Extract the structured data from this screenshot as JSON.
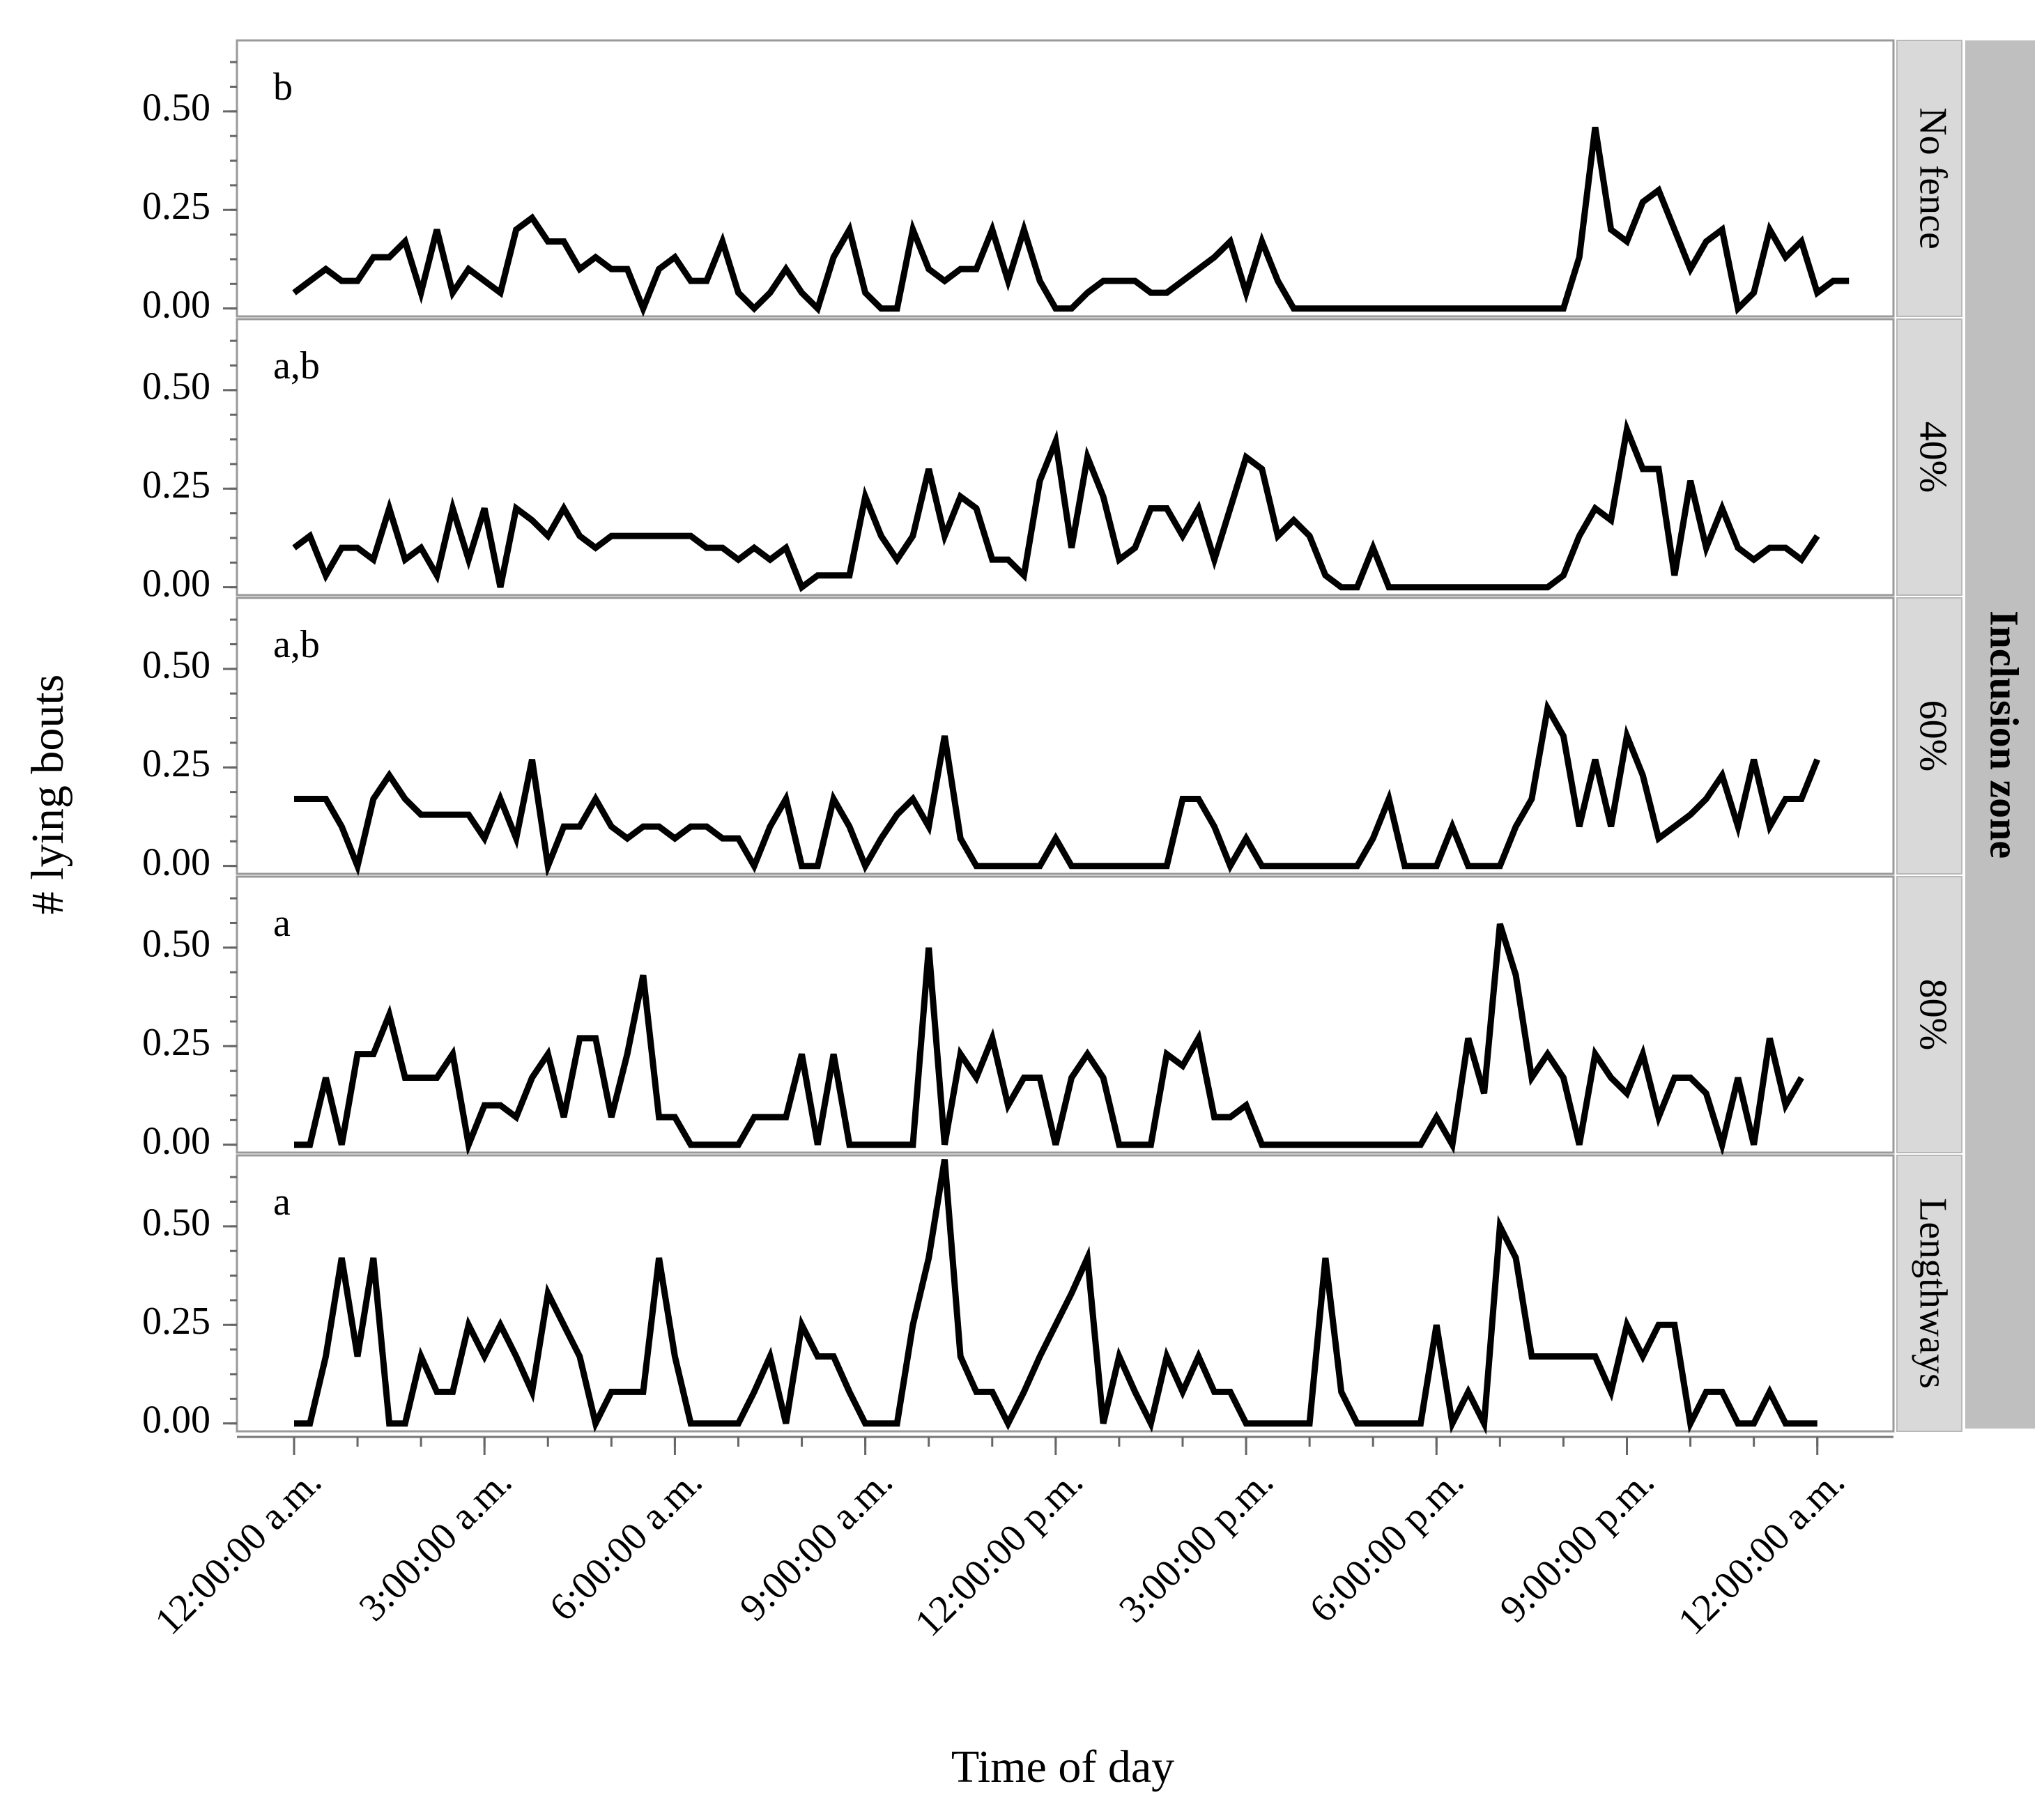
{
  "chart_data": {
    "type": "line",
    "xlabel": "Time of day",
    "ylabel": "# lying bouts",
    "facet_label": "Inclusion zone",
    "x_unit": "hours since midnight",
    "xlim": [
      -0.9,
      25.2
    ],
    "ylim": [
      -0.02,
      0.68
    ],
    "x_ticks": [
      {
        "value": 0,
        "label": "12:00:00 a.m."
      },
      {
        "value": 3,
        "label": "3:00:00 a.m."
      },
      {
        "value": 6,
        "label": "6:00:00 a.m."
      },
      {
        "value": 9,
        "label": "9:00:00 a.m."
      },
      {
        "value": 12,
        "label": "12:00:00 p.m."
      },
      {
        "value": 15,
        "label": "3:00:00 p.m."
      },
      {
        "value": 18,
        "label": "6:00:00 p.m."
      },
      {
        "value": 21,
        "label": "9:00:00 p.m."
      },
      {
        "value": 24,
        "label": "12:00:00 a.m."
      }
    ],
    "y_ticks": [
      {
        "value": 0,
        "label": "0.00"
      },
      {
        "value": 0.25,
        "label": "0.25"
      },
      {
        "value": 0.5,
        "label": "0.50"
      }
    ],
    "y_minor_step": 0.0625,
    "x_interval_hours": 0.25,
    "panels": [
      {
        "name": "No fence",
        "significance": "b",
        "values": [
          0.04,
          0.07,
          0.1,
          0.07,
          0.07,
          0.13,
          0.13,
          0.17,
          0.04,
          0.2,
          0.04,
          0.1,
          0.07,
          0.04,
          0.2,
          0.23,
          0.17,
          0.17,
          0.1,
          0.13,
          0.1,
          0.1,
          0,
          0.1,
          0.13,
          0.07,
          0.07,
          0.17,
          0.04,
          0,
          0.04,
          0.1,
          0.04,
          0,
          0.13,
          0.2,
          0.04,
          0,
          0,
          0.2,
          0.1,
          0.07,
          0.1,
          0.1,
          0.2,
          0.07,
          0.2,
          0.07,
          0,
          0,
          0.04,
          0.07,
          0.07,
          0.07,
          0.04,
          0.04,
          0.07,
          0.1,
          0.13,
          0.17,
          0.04,
          0.17,
          0.07,
          0,
          0,
          0,
          0,
          0,
          0,
          0,
          0,
          0,
          0,
          0,
          0,
          0,
          0,
          0,
          0,
          0,
          0,
          0.13,
          0.46,
          0.2,
          0.17,
          0.27,
          0.3,
          0.2,
          0.1,
          0.17,
          0.2,
          0,
          0.04,
          0.2,
          0.13,
          0.17,
          0.04,
          0.07,
          0.07
        ]
      },
      {
        "name": "40%",
        "significance": "a,b",
        "values": [
          0.1,
          0.13,
          0.03,
          0.1,
          0.1,
          0.07,
          0.2,
          0.07,
          0.1,
          0.03,
          0.2,
          0.07,
          0.2,
          0,
          0.2,
          0.17,
          0.13,
          0.2,
          0.13,
          0.1,
          0.13,
          0.13,
          0.13,
          0.13,
          0.13,
          0.13,
          0.1,
          0.1,
          0.07,
          0.1,
          0.07,
          0.1,
          0,
          0.03,
          0.03,
          0.03,
          0.23,
          0.13,
          0.07,
          0.13,
          0.3,
          0.13,
          0.23,
          0.2,
          0.07,
          0.07,
          0.03,
          0.27,
          0.37,
          0.1,
          0.33,
          0.23,
          0.07,
          0.1,
          0.2,
          0.2,
          0.13,
          0.2,
          0.07,
          0.2,
          0.33,
          0.3,
          0.13,
          0.17,
          0.13,
          0.03,
          0,
          0,
          0.1,
          0,
          0,
          0,
          0,
          0,
          0,
          0,
          0,
          0,
          0,
          0,
          0.03,
          0.13,
          0.2,
          0.17,
          0.4,
          0.3,
          0.3,
          0.03,
          0.27,
          0.1,
          0.2,
          0.1,
          0.07,
          0.1,
          0.1,
          0.07,
          0.13
        ]
      },
      {
        "name": "60%",
        "significance": "a,b",
        "values": [
          0.17,
          0.17,
          0.17,
          0.1,
          0,
          0.17,
          0.23,
          0.17,
          0.13,
          0.13,
          0.13,
          0.13,
          0.07,
          0.17,
          0.07,
          0.27,
          0,
          0.1,
          0.1,
          0.17,
          0.1,
          0.07,
          0.1,
          0.1,
          0.07,
          0.1,
          0.1,
          0.07,
          0.07,
          0,
          0.1,
          0.17,
          0,
          0,
          0.17,
          0.1,
          0,
          0.07,
          0.13,
          0.17,
          0.1,
          0.33,
          0.07,
          0,
          0,
          0,
          0,
          0,
          0.07,
          0,
          0,
          0,
          0,
          0,
          0,
          0,
          0.17,
          0.17,
          0.1,
          0,
          0.07,
          0,
          0,
          0,
          0,
          0,
          0,
          0,
          0.07,
          0.17,
          0,
          0,
          0,
          0.1,
          0,
          0,
          0,
          0.1,
          0.17,
          0.4,
          0.33,
          0.1,
          0.27,
          0.1,
          0.33,
          0.23,
          0.07,
          0.1,
          0.13,
          0.17,
          0.23,
          0.1,
          0.27,
          0.1,
          0.17,
          0.17,
          0.27
        ]
      },
      {
        "name": "80%",
        "significance": "a",
        "values": [
          0,
          0,
          0.17,
          0,
          0.23,
          0.23,
          0.33,
          0.17,
          0.17,
          0.17,
          0.23,
          0,
          0.1,
          0.1,
          0.07,
          0.17,
          0.23,
          0.07,
          0.27,
          0.27,
          0.07,
          0.23,
          0.43,
          0.07,
          0.07,
          0,
          0,
          0,
          0,
          0.07,
          0.07,
          0.07,
          0.23,
          0,
          0.23,
          0,
          0,
          0,
          0,
          0,
          0.5,
          0,
          0.23,
          0.17,
          0.27,
          0.1,
          0.17,
          0.17,
          0,
          0.17,
          0.23,
          0.17,
          0,
          0,
          0,
          0.23,
          0.2,
          0.27,
          0.07,
          0.07,
          0.1,
          0,
          0,
          0,
          0,
          0,
          0,
          0,
          0,
          0,
          0,
          0,
          0.07,
          0,
          0.27,
          0.13,
          0.56,
          0.43,
          0.17,
          0.23,
          0.17,
          0,
          0.23,
          0.17,
          0.13,
          0.23,
          0.07,
          0.17,
          0.17,
          0.13,
          0,
          0.17,
          0,
          0.27,
          0.1,
          0.17
        ]
      },
      {
        "name": "Lengthways",
        "significance": "a",
        "values": [
          0,
          0,
          0.17,
          0.42,
          0.17,
          0.42,
          0,
          0,
          0.17,
          0.08,
          0.08,
          0.25,
          0.17,
          0.25,
          0.17,
          0.08,
          0.33,
          0.25,
          0.17,
          0,
          0.08,
          0.08,
          0.08,
          0.42,
          0.17,
          0,
          0,
          0,
          0,
          0.08,
          0.17,
          0,
          0.25,
          0.17,
          0.17,
          0.08,
          0,
          0,
          0,
          0.25,
          0.42,
          0.67,
          0.17,
          0.08,
          0.08,
          0,
          0.08,
          0.17,
          0.25,
          0.33,
          0.42,
          0,
          0.17,
          0.08,
          0,
          0.17,
          0.08,
          0.17,
          0.08,
          0.08,
          0,
          0,
          0,
          0,
          0,
          0.42,
          0.08,
          0,
          0,
          0,
          0,
          0,
          0.25,
          0,
          0.08,
          0,
          0.5,
          0.42,
          0.17,
          0.17,
          0.17,
          0.17,
          0.17,
          0.08,
          0.25,
          0.17,
          0.25,
          0.25,
          0,
          0.08,
          0.08,
          0,
          0,
          0.08,
          0,
          0,
          0
        ]
      }
    ]
  }
}
